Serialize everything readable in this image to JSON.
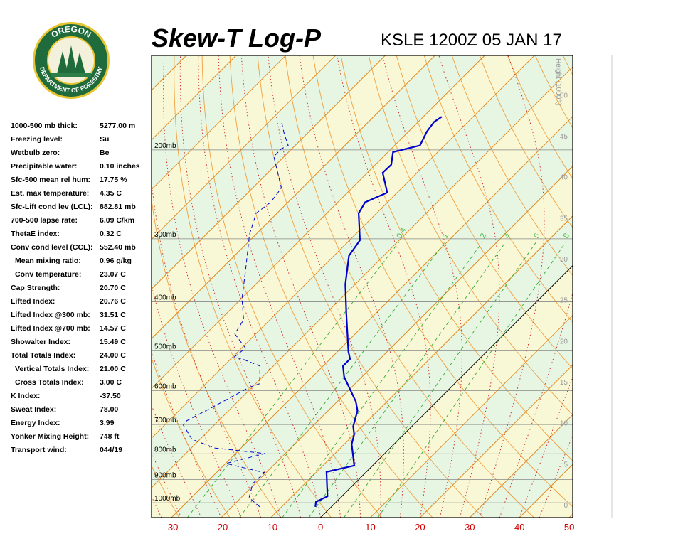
{
  "logo": {
    "top": "OREGON",
    "bottom": "DEPARTMENT OF FORESTRY"
  },
  "indices": [
    [
      "1000-500 mb thick:",
      "5277.00 m"
    ],
    [
      "Freezing level:",
      "Su"
    ],
    [
      "Wetbulb zero:",
      "Be"
    ],
    [
      "Precipitable water:",
      "0.10 inches"
    ],
    [
      "Sfc-500 mean rel hum:",
      "17.75 %"
    ],
    [
      "Est. max temperature:",
      "4.35 C"
    ],
    [
      "Sfc-Lift cond lev (LCL):",
      "882.81 mb"
    ],
    [
      "700-500 lapse rate:",
      "6.09 C/km"
    ],
    [
      "ThetaE index:",
      "0.32 C"
    ],
    [
      "Conv cond level (CCL):",
      "552.40 mb"
    ],
    [
      "Mean mixing ratio:",
      "0.96 g/kg"
    ],
    [
      "Conv temperature:",
      "23.07 C"
    ],
    [
      "Cap Strength:",
      "20.70 C"
    ],
    [
      "Lifted Index:",
      "20.76 C"
    ],
    [
      "Lifted Index @300 mb:",
      "31.51 C"
    ],
    [
      "Lifted Index @700 mb:",
      "14.57 C"
    ],
    [
      "Showalter Index:",
      "15.49 C"
    ],
    [
      "Total Totals Index:",
      "24.00 C"
    ],
    [
      "Vertical Totals Index:",
      "21.00 C"
    ],
    [
      "Cross Totals Index:",
      "3.00 C"
    ],
    [
      "K Index:",
      "-37.50"
    ],
    [
      "Sweat Index:",
      "78.00"
    ],
    [
      "Energy Index:",
      "3.99"
    ],
    [
      "Yonker Mixing Height:",
      "748 ft"
    ],
    [
      "Transport wind:",
      "044/19"
    ]
  ],
  "chart_data": {
    "type": "skewt",
    "title": "Skew-T Log-P",
    "subtitle": "KSLE 1200Z 05 JAN 17",
    "xlim": [
      -34,
      50.7
    ],
    "xticks": [
      -30,
      -20,
      -10,
      0,
      10,
      20,
      30,
      40,
      50
    ],
    "ylim": [
      1070,
      130
    ],
    "log_y": true,
    "yticks": [
      {
        "value": 1000,
        "label": "1000mb"
      },
      {
        "value": 900,
        "label": "900mb"
      },
      {
        "value": 800,
        "label": "800mb"
      },
      {
        "value": 700,
        "label": "700mb"
      },
      {
        "value": 600,
        "label": "600mb"
      },
      {
        "value": 500,
        "label": "500mb"
      },
      {
        "value": 400,
        "label": "400mb"
      },
      {
        "value": 300,
        "label": "300mb"
      },
      {
        "value": 200,
        "label": "200mb"
      }
    ],
    "y2label": "Height (1000ft)",
    "y2lim": [
      -1.56,
      54.8
    ],
    "y2ticks": [
      0,
      5,
      10,
      15,
      20,
      25,
      30,
      35,
      40,
      45,
      50
    ],
    "mixing_ratios": [
      0.4,
      1,
      2,
      3,
      5,
      8
    ],
    "series": [
      {
        "color": "#0000cc",
        "style": "solid",
        "values": [
          1019,
          996,
          971,
          869,
          844,
          766,
          732,
          706,
          657,
          630,
          563,
          536,
          519,
          502,
          420,
          369,
          324,
          302,
          267,
          254,
          243,
          222,
          214,
          202,
          196,
          184,
          176,
          172
        ],
        "x": [
          -3.2,
          -4.1,
          -2.9,
          -8.0,
          -3.7,
          -8.5,
          -10.0,
          -11.8,
          -14.1,
          -16.3,
          -23.6,
          -26.0,
          -26.0,
          -27.8,
          -36.1,
          -42.0,
          -47.0,
          -47.9,
          -53.6,
          -54.5,
          -52.0,
          -56.9,
          -56.8,
          -59.0,
          -54.9,
          -56.3,
          -56.8,
          -56.3
        ]
      },
      {
        "color": "#0000cc",
        "style": "dashed",
        "values": [
          1019,
          977,
          916,
          872,
          836,
          799,
          779,
          749,
          702,
          688,
          651,
          591,
          581,
          536,
          519,
          515,
          494,
          463,
          434,
          394,
          346,
          294,
          267,
          254,
          238,
          206,
          199,
          196,
          186,
          175
        ],
        "x": [
          -14.4,
          -18.4,
          -20.5,
          -20.3,
          -29.9,
          -24.1,
          -35.3,
          -41.6,
          -46.2,
          -46.4,
          -44.2,
          -40.6,
          -39.2,
          -42.7,
          -47.7,
          -49.7,
          -49.2,
          -54.2,
          -55.3,
          -59.9,
          -64.9,
          -71.3,
          -74.2,
          -73.5,
          -74.2,
          -82.1,
          -82.1,
          -81.4,
          -84.5,
          -87.8
        ]
      }
    ]
  }
}
